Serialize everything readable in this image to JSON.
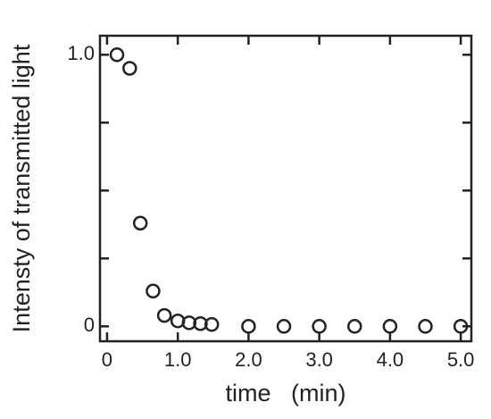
{
  "chart_data": {
    "type": "scatter",
    "x_label": "time   (min)",
    "y_label": "Intensty of transmitted light",
    "x": [
      0.14,
      0.32,
      0.47,
      0.65,
      0.81,
      1.0,
      1.16,
      1.32,
      1.48,
      2.0,
      2.5,
      3.0,
      3.5,
      4.0,
      4.5,
      5.0
    ],
    "values": [
      1.0,
      0.95,
      0.38,
      0.13,
      0.04,
      0.02,
      0.013,
      0.01,
      0.007,
      0,
      0,
      0,
      0,
      0,
      0,
      0
    ],
    "color": "#222222",
    "xlim": [
      -0.1,
      5.15
    ],
    "ylim": [
      -0.055,
      1.07
    ],
    "xticks": [
      0,
      {
        "value": 1,
        "label": "1.0"
      },
      {
        "value": 2,
        "label": "2.0"
      },
      {
        "value": 3,
        "label": "3.0"
      },
      {
        "value": 4,
        "label": "4.0"
      },
      {
        "value": 5,
        "label": "5.0"
      }
    ],
    "yticks": [
      0,
      {
        "value": 1,
        "label": "1.0"
      }
    ],
    "y_minor_ticks": [
      0.25,
      0.5,
      0.75
    ],
    "grid": false
  }
}
